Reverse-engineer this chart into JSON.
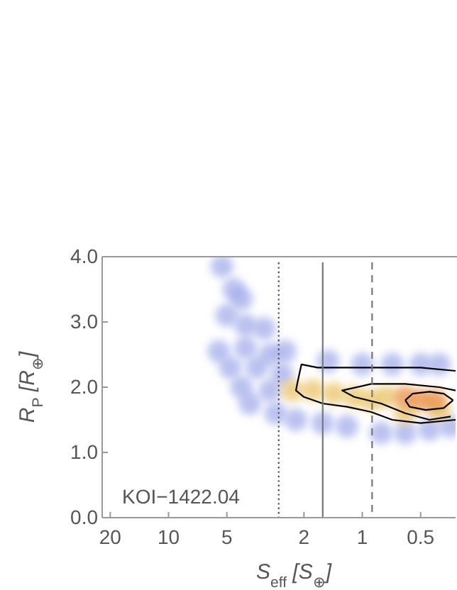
{
  "chart_data": {
    "type": "scatter",
    "xlabel": "S$_{eff}$ [S$_{⊕}$]",
    "ylabel": "R$_{P}$ [R$_{⊕}$]",
    "log": "x",
    "xlim": [
      22,
      0.33
    ],
    "ylim": [
      0,
      4
    ],
    "xticks": [
      20,
      10,
      5,
      2,
      1,
      0.5
    ],
    "yticks": [
      {
        "value": 0,
        "label": "0.0"
      },
      {
        "value": 1,
        "label": "1.0"
      },
      {
        "value": 2,
        "label": "2.0"
      },
      {
        "value": 3,
        "label": "3.0"
      },
      {
        "value": 4,
        "label": "4.0"
      }
    ],
    "annotations": [
      "KOI−1422.04"
    ],
    "ref_lines": [
      {
        "axis": "x",
        "value": 2.7,
        "color": "#555555",
        "line_style": "dotted"
      },
      {
        "axis": "x",
        "value": 1.6,
        "color": "#777777",
        "line_style": "solid"
      },
      {
        "axis": "x",
        "value": 0.89,
        "color": "#777777",
        "line_style": "dashed"
      }
    ],
    "series": [
      {
        "marker": "circle",
        "color": "#9ea8e8",
        "x": [
          5.3,
          4.6,
          4.2,
          5.0,
          4.0,
          3.2,
          5.5,
          4.0,
          3.0,
          2.5,
          4.8,
          3.5,
          2.6,
          4.2,
          3.0,
          3.8,
          2.8,
          2.2,
          1.6,
          1.2,
          0.8,
          0.6,
          0.45,
          0.35,
          1.5,
          1.0,
          0.7,
          0.5,
          0.4
        ],
        "values": [
          3.85,
          3.5,
          3.35,
          3.1,
          2.95,
          2.9,
          2.55,
          2.6,
          2.5,
          2.55,
          2.3,
          2.3,
          2.2,
          2.0,
          1.95,
          1.75,
          1.6,
          1.5,
          1.45,
          1.4,
          1.3,
          1.3,
          1.35,
          1.4,
          2.4,
          2.35,
          2.35,
          2.35,
          2.35
        ]
      },
      {
        "marker": "circle",
        "color": "#e8c060",
        "x": [
          2.3,
          1.8,
          1.4,
          1.1,
          0.9,
          0.75,
          0.6,
          0.4
        ],
        "values": [
          1.95,
          1.95,
          1.9,
          1.85,
          1.8,
          1.85,
          1.6,
          1.65
        ]
      },
      {
        "marker": "circle",
        "color": "#e88a40",
        "x": [
          0.5,
          0.42,
          0.6
        ],
        "values": [
          1.8,
          1.8,
          1.85
        ]
      },
      {
        "type": "line",
        "marker": "none",
        "color": "#000000",
        "x": [
          0.33,
          0.5,
          0.8,
          1.2,
          1.7,
          2.06,
          2.15,
          2.2,
          2.0,
          1.6,
          1.2,
          0.9,
          0.7,
          0.5,
          0.33
        ],
        "values": [
          2.25,
          2.3,
          2.3,
          2.3,
          2.3,
          2.35,
          2.1,
          1.95,
          1.85,
          1.75,
          1.7,
          1.62,
          1.5,
          1.45,
          1.5
        ]
      },
      {
        "type": "line",
        "marker": "none",
        "color": "#000000",
        "x": [
          0.33,
          0.4,
          0.6,
          0.9,
          1.27,
          1.1,
          0.8,
          0.6,
          0.45,
          0.35
        ],
        "values": [
          1.95,
          2.0,
          2.05,
          2.05,
          1.95,
          1.85,
          1.75,
          1.6,
          1.5,
          1.55
        ]
      },
      {
        "type": "line",
        "marker": "none",
        "color": "#000000",
        "x": [
          0.6,
          0.55,
          0.45,
          0.38,
          0.34
        ],
        "values": [
          1.8,
          1.9,
          1.93,
          1.9,
          1.8
        ]
      },
      {
        "type": "line",
        "marker": "none",
        "color": "#000000",
        "x": [
          0.34,
          0.38,
          0.47,
          0.57,
          0.6
        ],
        "values": [
          1.8,
          1.68,
          1.65,
          1.7,
          1.8
        ]
      }
    ]
  }
}
